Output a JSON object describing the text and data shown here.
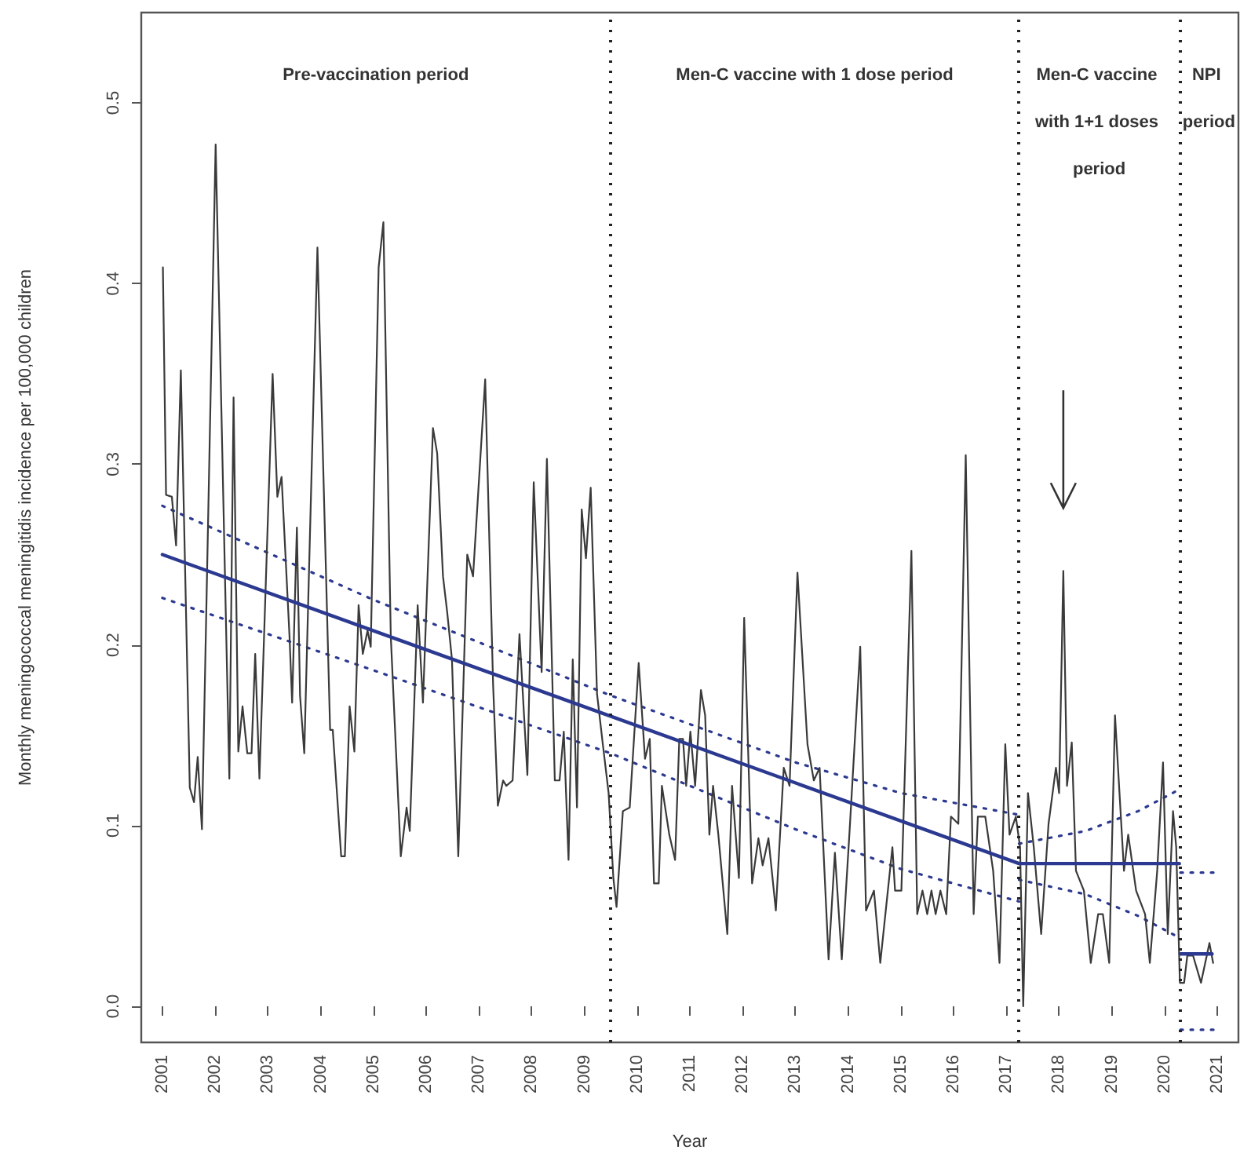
{
  "chart_data": {
    "type": "line",
    "xlabel": "Year",
    "ylabel": "Monthly meningococcal meningitidis incidence per 100,000 children",
    "xlim": [
      2000.6,
      2021.4
    ],
    "xticks": [
      2001,
      2002,
      2003,
      2004,
      2005,
      2006,
      2007,
      2008,
      2009,
      2010,
      2011,
      2012,
      2013,
      2014,
      2015,
      2016,
      2017,
      2018,
      2019,
      2020,
      2021
    ],
    "ylim": [
      -0.02,
      0.55
    ],
    "yticks": [
      {
        "value": 0,
        "label": "0.0"
      },
      {
        "value": 0.1,
        "label": "0.1"
      },
      {
        "value": 0.2,
        "label": "0.2"
      },
      {
        "value": 0.3,
        "label": "0.3"
      },
      {
        "value": 0.4,
        "label": "0.4"
      },
      {
        "value": 0.5,
        "label": "0.5"
      }
    ],
    "grid": false,
    "marker": "none",
    "series": [
      {
        "color": "#3a3a3a",
        "line_style": "solid",
        "x": [
          2001.01,
          2001.07,
          2001.18,
          2001.26,
          2001.35,
          2001.52,
          2001.6,
          2001.67,
          2001.75,
          2002.01,
          2002.27,
          2002.35,
          2002.44,
          2002.52,
          2002.61,
          2002.69,
          2002.76,
          2002.84,
          2003.09,
          2003.18,
          2003.26,
          2003.41,
          2003.46,
          2003.55,
          2003.61,
          2003.69,
          2003.94,
          2004.18,
          2004.23,
          2004.39,
          2004.46,
          2004.55,
          2004.64,
          2004.72,
          2004.8,
          2004.89,
          2004.95,
          2005.1,
          2005.19,
          2005.33,
          2005.52,
          2005.63,
          2005.69,
          2005.84,
          2005.94,
          2006.13,
          2006.21,
          2006.32,
          2006.4,
          2006.49,
          2006.61,
          2006.78,
          2006.89,
          2007.12,
          2007.27,
          2007.36,
          2007.46,
          2007.52,
          2007.64,
          2007.77,
          2007.92,
          2008.04,
          2008.19,
          2008.29,
          2008.44,
          2008.53,
          2008.61,
          2008.7,
          2008.78,
          2008.86,
          2008.95,
          2009.03,
          2009.12,
          2009.24,
          2009.35,
          2009.46,
          2009.55,
          2009.61,
          2009.73,
          2009.86,
          2010.03,
          2010.15,
          2010.24,
          2010.32,
          2010.41,
          2010.47,
          2010.61,
          2010.72,
          2010.8,
          2010.87,
          2010.93,
          2011.01,
          2011.1,
          2011.21,
          2011.29,
          2011.37,
          2011.44,
          2011.54,
          2011.71,
          2011.8,
          2011.93,
          2012.03,
          2012.18,
          2012.3,
          2012.38,
          2012.49,
          2012.63,
          2012.78,
          2012.89,
          2013.04,
          2013.23,
          2013.35,
          2013.46,
          2013.63,
          2013.75,
          2013.88,
          2014.03,
          2014.23,
          2014.34,
          2014.49,
          2014.61,
          2014.84,
          2014.89,
          2015.01,
          2015.2,
          2015.31,
          2015.41,
          2015.5,
          2015.58,
          2015.66,
          2015.75,
          2015.86,
          2015.95,
          2016.09,
          2016.23,
          2016.38,
          2016.46,
          2016.6,
          2016.75,
          2016.87,
          2016.98,
          2017.06,
          2017.18,
          2017.26,
          2017.32,
          2017.41,
          2017.52,
          2017.66,
          2017.8,
          2017.94,
          2018.0,
          2018.08,
          2018.15,
          2018.24,
          2018.32,
          2018.47,
          2018.6,
          2018.74,
          2018.83,
          2018.95,
          2019.06,
          2019.23,
          2019.31,
          2019.46,
          2019.63,
          2019.72,
          2019.86,
          2019.97,
          2020.06,
          2020.16,
          2020.22,
          2020.29,
          2020.37,
          2020.43,
          2020.54,
          2020.69,
          2020.85,
          2020.92
        ],
        "values": [
          0.409,
          0.283,
          0.282,
          0.255,
          0.352,
          0.121,
          0.113,
          0.138,
          0.098,
          0.477,
          0.126,
          0.337,
          0.141,
          0.166,
          0.14,
          0.14,
          0.195,
          0.126,
          0.35,
          0.282,
          0.293,
          0.205,
          0.168,
          0.265,
          0.172,
          0.14,
          0.42,
          0.153,
          0.153,
          0.083,
          0.083,
          0.166,
          0.141,
          0.222,
          0.195,
          0.208,
          0.199,
          0.409,
          0.434,
          0.205,
          0.083,
          0.11,
          0.097,
          0.222,
          0.168,
          0.32,
          0.306,
          0.238,
          0.218,
          0.192,
          0.083,
          0.25,
          0.238,
          0.347,
          0.178,
          0.111,
          0.125,
          0.122,
          0.125,
          0.206,
          0.128,
          0.29,
          0.185,
          0.303,
          0.125,
          0.125,
          0.152,
          0.081,
          0.192,
          0.11,
          0.275,
          0.248,
          0.287,
          0.173,
          0.145,
          0.118,
          0.071,
          0.055,
          0.108,
          0.11,
          0.19,
          0.137,
          0.148,
          0.068,
          0.068,
          0.122,
          0.095,
          0.081,
          0.148,
          0.148,
          0.122,
          0.152,
          0.122,
          0.175,
          0.161,
          0.095,
          0.122,
          0.095,
          0.04,
          0.122,
          0.071,
          0.215,
          0.068,
          0.093,
          0.078,
          0.093,
          0.053,
          0.132,
          0.122,
          0.24,
          0.145,
          0.125,
          0.132,
          0.026,
          0.085,
          0.026,
          0.098,
          0.199,
          0.053,
          0.064,
          0.024,
          0.088,
          0.064,
          0.064,
          0.252,
          0.051,
          0.064,
          0.051,
          0.064,
          0.051,
          0.064,
          0.051,
          0.105,
          0.101,
          0.305,
          0.051,
          0.105,
          0.105,
          0.075,
          0.024,
          0.145,
          0.095,
          0.105,
          0.088,
          0.0,
          0.118,
          0.088,
          0.04,
          0.101,
          0.132,
          0.118,
          0.241,
          0.122,
          0.146,
          0.075,
          0.064,
          0.024,
          0.051,
          0.051,
          0.024,
          0.161,
          0.075,
          0.095,
          0.064,
          0.051,
          0.024,
          0.075,
          0.135,
          0.04,
          0.108,
          0.088,
          0.013,
          0.013,
          0.028,
          0.028,
          0.013,
          0.035,
          0.024
        ]
      },
      {
        "color": "#2b3990",
        "line_style": "solid",
        "x": [
          2001,
          2017.24,
          2020.28
        ],
        "values": [
          0.25,
          0.079,
          0.079
        ]
      },
      {
        "color": "#2b3990",
        "line_style": "solid",
        "x": [
          2020.3,
          2020.9
        ],
        "values": [
          0.029,
          0.029
        ]
      },
      {
        "color": "#2b3990",
        "line_style": "dotted",
        "x": [
          2001,
          2005,
          2009.5,
          2013,
          2015,
          2017.24
        ],
        "values": [
          0.277,
          0.225,
          0.172,
          0.135,
          0.118,
          0.106
        ]
      },
      {
        "color": "#2b3990",
        "line_style": "dotted",
        "x": [
          2001,
          2005,
          2009.5,
          2013,
          2015,
          2017.24
        ],
        "values": [
          0.226,
          0.186,
          0.14,
          0.098,
          0.076,
          0.058
        ]
      },
      {
        "color": "#2b3990",
        "line_style": "dotted",
        "x": [
          2017.24,
          2018.5,
          2019.5,
          2020.28
        ],
        "values": [
          0.09,
          0.097,
          0.108,
          0.12
        ]
      },
      {
        "color": "#2b3990",
        "line_style": "dotted",
        "x": [
          2017.24,
          2018.5,
          2019.5,
          2020.28
        ],
        "values": [
          0.07,
          0.062,
          0.05,
          0.038
        ]
      },
      {
        "color": "#2b3990",
        "line_style": "dotted",
        "x": [
          2020.3,
          2021
        ],
        "values": [
          0.074,
          0.074
        ]
      },
      {
        "color": "#2b3990",
        "line_style": "dotted",
        "x": [
          2020.3,
          2021
        ],
        "values": [
          -0.013,
          -0.013
        ]
      }
    ],
    "ref_lines": [
      {
        "axis": "x",
        "value": 2009.49,
        "color": "#222222",
        "line_style": "dotted"
      },
      {
        "axis": "x",
        "value": 2017.24,
        "color": "#222222",
        "line_style": "dotted"
      },
      {
        "axis": "x",
        "value": 2020.28,
        "color": "#222222",
        "line_style": "dotted"
      }
    ],
    "annotations": [
      "Pre-vaccination period",
      "Men-C vaccine with 1 dose period",
      "Men-C vaccine with 1+1 doses period",
      "NPI period"
    ]
  }
}
